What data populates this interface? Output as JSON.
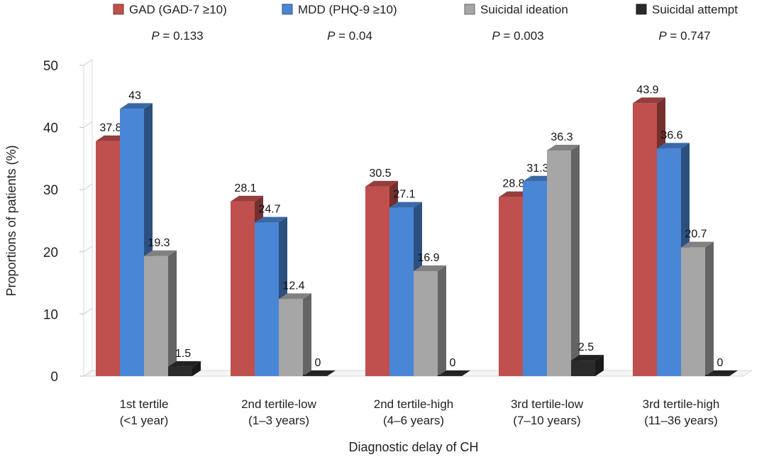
{
  "chart_data": {
    "type": "bar",
    "title": "",
    "xlabel": "Diagnostic delay of CH",
    "ylabel": "Proportions of patients (%)",
    "ylim": [
      0,
      50
    ],
    "yticks": [
      0,
      10,
      20,
      30,
      40,
      50
    ],
    "grid": false,
    "legend_position": "top",
    "categories": [
      {
        "line1": "1st tertile",
        "line2": "(<1 year)"
      },
      {
        "line1": "2nd tertile-low",
        "line2": "(1–3 years)"
      },
      {
        "line1": "2nd tertile-high",
        "line2": "(4–6 years)"
      },
      {
        "line1": "3rd tertile-low",
        "line2": "(7–10 years)"
      },
      {
        "line1": "3rd tertile-high",
        "line2": "(11–36 years)"
      }
    ],
    "series": [
      {
        "name": "GAD (GAD-7 ≥10)",
        "color": "#c0504d",
        "values": [
          37.8,
          28.1,
          30.5,
          28.8,
          43.9
        ],
        "labels": [
          "37.8",
          "28.1",
          "30.5",
          "28.8",
          "43.9"
        ],
        "p_label": "P",
        "p_value": " = 0.133"
      },
      {
        "name": "MDD (PHQ-9 ≥10)",
        "color": "#4a86d6",
        "values": [
          43,
          24.7,
          27.1,
          31.3,
          36.6
        ],
        "labels": [
          "43",
          "24.7",
          "27.1",
          "31.3",
          "36.6"
        ],
        "p_label": "P",
        "p_value": " = 0.04"
      },
      {
        "name": "Suicidal ideation",
        "color": "#a6a6a6",
        "values": [
          19.3,
          12.4,
          16.9,
          36.3,
          20.7
        ],
        "labels": [
          "19.3",
          "12.4",
          "16.9",
          "36.3",
          "20.7"
        ],
        "p_label": "P",
        "p_value": " = 0.003"
      },
      {
        "name": "Suicidal attempt",
        "color": "#2b2b2b",
        "values": [
          1.5,
          0,
          0,
          2.5,
          0
        ],
        "labels": [
          "1.5",
          "0",
          "0",
          "2.5",
          "0"
        ],
        "p_label": "P",
        "p_value": " = 0.747"
      }
    ]
  }
}
